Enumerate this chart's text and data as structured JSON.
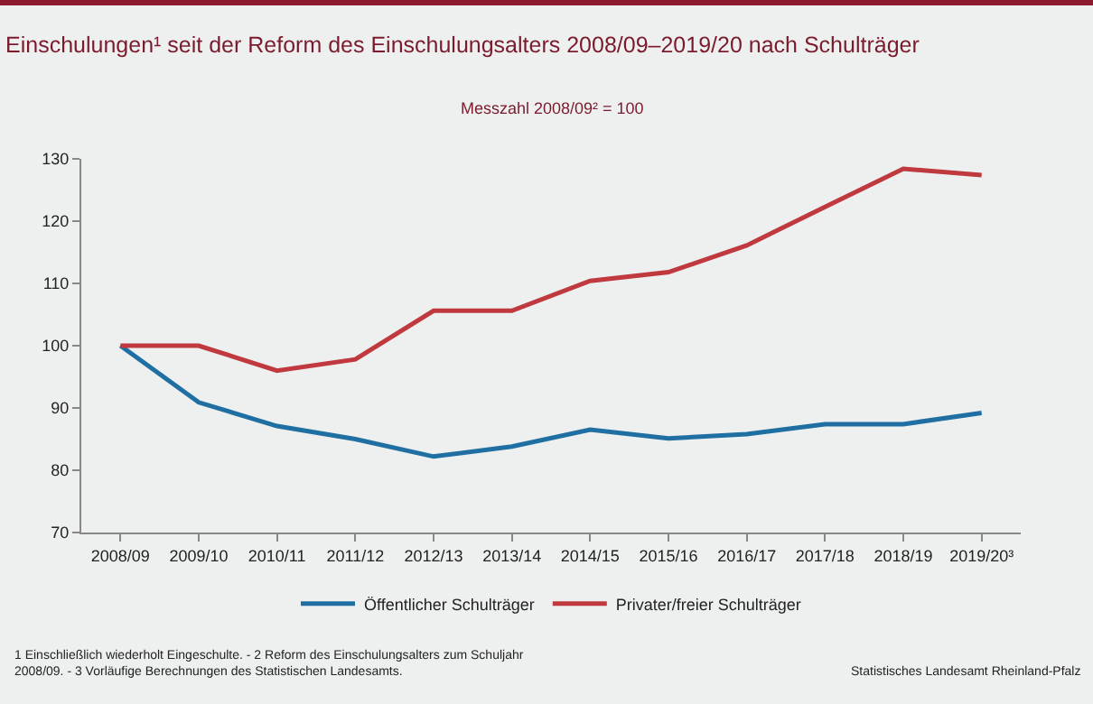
{
  "chart_data": {
    "type": "line",
    "title": "Einschulungen¹ seit der Reform des Einschulungsalters 2008/09–2019/20 nach Schulträger",
    "subtitle": "Messzahl 2008/09² = 100",
    "categories": [
      "2008/09",
      "2009/10",
      "2010/11",
      "2011/12",
      "2012/13",
      "2013/14",
      "2014/15",
      "2015/16",
      "2016/17",
      "2017/18",
      "2018/19",
      "2019/20³"
    ],
    "series": [
      {
        "name": "Öffentlicher Schulträger",
        "color": "#1f6fa3",
        "values": [
          100,
          90.9,
          87.1,
          85.0,
          82.2,
          83.8,
          86.5,
          85.1,
          85.8,
          87.4,
          87.4,
          89.2
        ]
      },
      {
        "name": "Privater/freier Schulträger",
        "color": "#c0393f",
        "values": [
          100,
          100,
          96.0,
          97.8,
          105.6,
          105.6,
          110.4,
          111.8,
          116.1,
          122.3,
          128.4,
          127.4
        ]
      }
    ],
    "ylim": [
      70,
      130
    ],
    "yticks": [
      70,
      80,
      90,
      100,
      110,
      120,
      130
    ],
    "grid": false,
    "legend": "bottom",
    "marker": "none",
    "line_style": "solid",
    "annotations": [
      "1 Einschließlich wiederholt Eingeschulte. - 2 Reform des Einschulungsalters zum Schuljahr 2008/09. - 3 Vorläufige Berechnungen des Statistischen Landesamts.",
      "Statistisches Landesamt Rheinland-Pfalz"
    ]
  }
}
